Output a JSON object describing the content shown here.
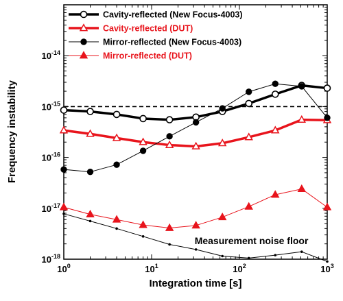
{
  "chart_data": {
    "type": "line",
    "xlabel": "Integration time [s]",
    "ylabel": "Frequency instability",
    "xscale": "log",
    "yscale": "log",
    "xlim": [
      1,
      1000
    ],
    "ylim": [
      1e-18,
      1e-13
    ],
    "x_ticks": [
      {
        "value": 1,
        "base": "10",
        "exp": "0"
      },
      {
        "value": 10,
        "base": "10",
        "exp": "1"
      },
      {
        "value": 100,
        "base": "10",
        "exp": "2"
      },
      {
        "value": 1000,
        "base": "10",
        "exp": "3"
      }
    ],
    "y_ticks": [
      {
        "value": 1e-18,
        "base": "10",
        "exp": "-18"
      },
      {
        "value": 1e-17,
        "base": "10",
        "exp": "-17"
      },
      {
        "value": 1e-16,
        "base": "10",
        "exp": "-16"
      },
      {
        "value": 1e-15,
        "base": "10",
        "exp": "-15"
      },
      {
        "value": 1e-14,
        "base": "10",
        "exp": "-14"
      }
    ],
    "legend_position": "top-left",
    "reference_line": {
      "y": 1e-15,
      "style": "dashed"
    },
    "annotations": [
      {
        "text": "Measurement noise floor",
        "x": 150,
        "y": 2.3e-18
      }
    ],
    "series": [
      {
        "name": "Cavity-reflected (New Focus-4003)",
        "color": "#000000",
        "marker": "open-circle",
        "line_width": 3.5,
        "x": [
          1,
          2,
          4,
          8,
          16,
          32,
          64,
          128,
          256,
          512,
          1000
        ],
        "y": [
          8.5e-16,
          8e-16,
          7e-16,
          5.8e-16,
          5.5e-16,
          6.2e-16,
          8e-16,
          1.15e-15,
          1.75e-15,
          2.6e-15,
          2.3e-15
        ]
      },
      {
        "name": "Cavity-reflected (DUT)",
        "color": "#e8141c",
        "marker": "open-triangle",
        "line_width": 3.5,
        "x": [
          1,
          2,
          4,
          8,
          16,
          32,
          64,
          128,
          256,
          512,
          1000
        ],
        "y": [
          3.4e-16,
          2.9e-16,
          2.4e-16,
          2e-16,
          1.75e-16,
          1.65e-16,
          1.9e-16,
          2.5e-16,
          3.4e-16,
          5.5e-16,
          5.4e-16
        ]
      },
      {
        "name": "Mirror-reflected (New Focus-4003)",
        "color": "#000000",
        "marker": "filled-circle",
        "line_width": 1,
        "x": [
          1,
          2,
          4,
          8,
          16,
          32,
          64,
          128,
          256,
          512,
          1000
        ],
        "y": [
          5.8e-17,
          5.2e-17,
          7.2e-17,
          1.35e-16,
          2.6e-16,
          4.9e-16,
          9.2e-16,
          1.95e-15,
          2.8e-15,
          2.5e-15,
          6e-16
        ]
      },
      {
        "name": "Mirror-reflected (DUT)",
        "color": "#e8141c",
        "marker": "filled-triangle",
        "line_width": 1,
        "x": [
          1,
          2,
          4,
          8,
          16,
          32,
          64,
          128,
          256,
          512,
          1000
        ],
        "y": [
          1.05e-17,
          7.6e-18,
          6e-18,
          4.7e-18,
          4.1e-18,
          4.6e-18,
          6.7e-18,
          1.08e-17,
          1.85e-17,
          2.4e-17,
          1.05e-17
        ]
      },
      {
        "name": "",
        "color": "#000000",
        "marker": "small-dot",
        "line_width": 1,
        "x": [
          1,
          2,
          4,
          8,
          16,
          32,
          64,
          128,
          256,
          512,
          1000
        ],
        "y": [
          7.8e-18,
          5.6e-18,
          4e-18,
          2.8e-18,
          1.95e-18,
          1.55e-18,
          1.15e-18,
          1.05e-18,
          1.2e-18,
          1.4e-18,
          9e-19
        ]
      }
    ]
  }
}
